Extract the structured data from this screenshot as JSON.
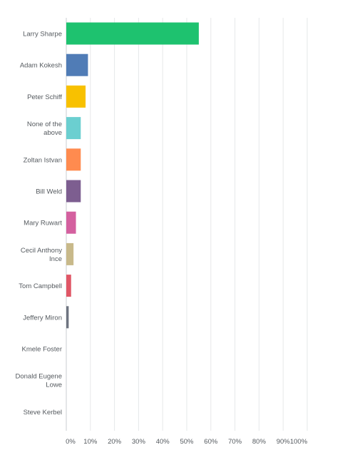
{
  "chart_data": {
    "type": "bar",
    "orientation": "horizontal",
    "categories": [
      "Larry Sharpe",
      "Adam Kokesh",
      "Peter Schiff",
      "None of the above",
      "Zoltan Istvan",
      "Bill Weld",
      "Mary Ruwart",
      "Cecil Anthony Ince",
      "Tom Campbell",
      "Jeffery Miron",
      "Kmele Foster",
      "Donald Eugene Lowe",
      "Steve Kerbel"
    ],
    "category_lines": [
      [
        "Larry Sharpe"
      ],
      [
        "Adam Kokesh"
      ],
      [
        "Peter Schiff"
      ],
      [
        "None of the",
        "above"
      ],
      [
        "Zoltan Istvan"
      ],
      [
        "Bill Weld"
      ],
      [
        "Mary Ruwart"
      ],
      [
        "Cecil Anthony",
        "Ince"
      ],
      [
        "Tom Campbell"
      ],
      [
        "Jeffery Miron"
      ],
      [
        "Kmele Foster"
      ],
      [
        "Donald Eugene",
        "Lowe"
      ],
      [
        "Steve Kerbel"
      ]
    ],
    "values": [
      55,
      9,
      8,
      6,
      6,
      6,
      4,
      3,
      2,
      1,
      0,
      0,
      0
    ],
    "colors": [
      "#1ec26f",
      "#507cb6",
      "#f8c100",
      "#6bcfd0",
      "#ff8b4f",
      "#7d5e90",
      "#d4609f",
      "#c8b98a",
      "#e05666",
      "#6e7480",
      "#cccccc",
      "#cccccc",
      "#cccccc"
    ],
    "xlim": [
      0,
      100
    ],
    "x_ticks": [
      0,
      10,
      20,
      30,
      40,
      50,
      60,
      70,
      80,
      90,
      100
    ],
    "x_tick_labels": [
      "0%",
      "10%",
      "20%",
      "30%",
      "40%",
      "50%",
      "60%",
      "70%",
      "80%",
      "90%",
      "100%"
    ],
    "grid": true,
    "title": "",
    "xlabel": "",
    "ylabel": ""
  }
}
